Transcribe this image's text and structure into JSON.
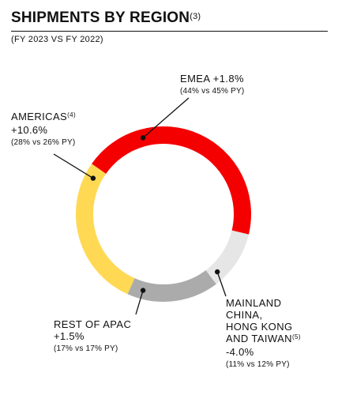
{
  "header": {
    "title": "SHIPMENTS BY REGION",
    "title_note": "(3)",
    "subtitle": "(FY 2023 VS FY 2022)"
  },
  "chart_data": {
    "type": "pie",
    "style": "donut",
    "unit": "%",
    "series": [
      {
        "name": "EMEA",
        "share": 44,
        "prior_share": 45,
        "change": "+1.8%",
        "comparison": "(44% vs 45% PY)",
        "note": "",
        "color": "#F50000"
      },
      {
        "name": "MAINLAND CHINA, HONG KONG AND TAIWAN",
        "name_lines": [
          "MAINLAND",
          "CHINA,",
          "HONG KONG",
          "AND TAIWAN"
        ],
        "share": 11,
        "prior_share": 12,
        "change": "-4.0%",
        "comparison": "(11% vs 12% PY)",
        "note": "(5)",
        "color": "#E6E6E6"
      },
      {
        "name": "REST OF APAC",
        "share": 17,
        "prior_share": 17,
        "change": "+1.5%",
        "comparison": "(17% vs 17% PY)",
        "note": "",
        "color": "#ABABAB"
      },
      {
        "name": "AMERICAS",
        "share": 28,
        "prior_share": 26,
        "change": "+10.6%",
        "comparison": "(28% vs 26% PY)",
        "note": "(4)",
        "color": "#FFD954"
      }
    ]
  }
}
